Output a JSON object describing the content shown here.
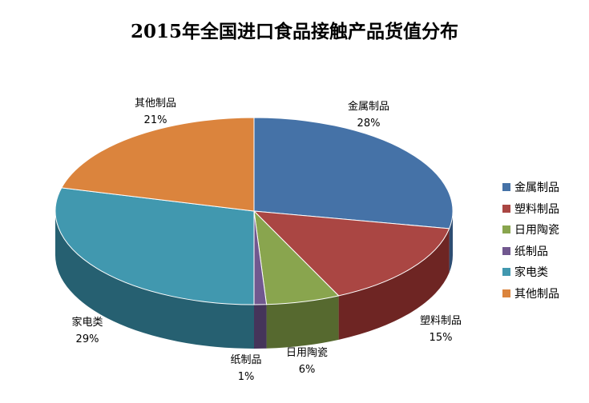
{
  "chart_data": {
    "type": "pie",
    "style": "3d",
    "title": "2015年全国进口食品接触产品货值分布",
    "unit": "%",
    "legend_position": "right",
    "slices": [
      {
        "label": "金属制品",
        "value": 28,
        "display": "28%",
        "color": "#4572A7",
        "side_color": "#2E4D72"
      },
      {
        "label": "塑料制品",
        "value": 15,
        "display": "15%",
        "color": "#AA4643",
        "side_color": "#6E2523"
      },
      {
        "label": "日用陶瓷",
        "value": 6,
        "display": "6%",
        "color": "#89A54E",
        "side_color": "#56692F"
      },
      {
        "label": "纸制品",
        "value": 1,
        "display": "1%",
        "color": "#71588F",
        "side_color": "#45345A"
      },
      {
        "label": "家电类",
        "value": 29,
        "display": "29%",
        "color": "#4198AF",
        "side_color": "#266071"
      },
      {
        "label": "其他制品",
        "value": 21,
        "display": "21%",
        "color": "#DB843D",
        "side_color": "#8E5222"
      }
    ]
  }
}
